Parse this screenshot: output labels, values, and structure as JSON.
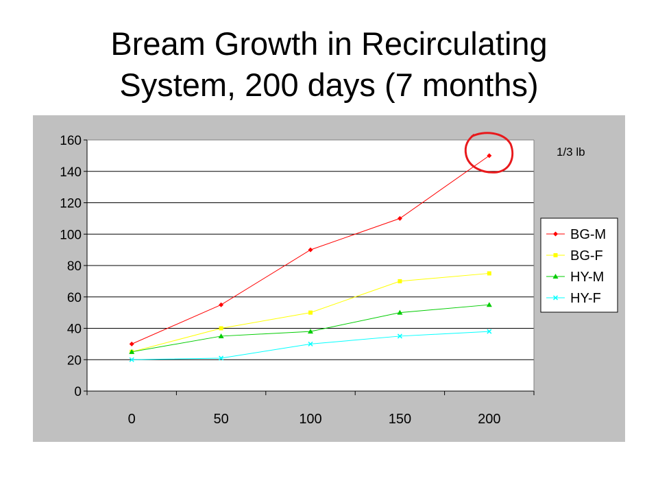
{
  "slide": {
    "title_line1": "Bream Growth in Recirculating",
    "title_line2": "System, 200 days (7 months)"
  },
  "annotation": {
    "text": "1/3 lb",
    "circle_color": "#e8191c"
  },
  "colors": {
    "chart_background": "#c0c0c0",
    "plot_background": "#ffffff",
    "gridline": "#000000"
  },
  "chart_data": {
    "type": "line",
    "categories": [
      "0",
      "50",
      "100",
      "150",
      "200"
    ],
    "x": [
      0,
      50,
      100,
      150,
      200
    ],
    "ylim": [
      0,
      160
    ],
    "yticks": [
      0,
      20,
      40,
      60,
      80,
      100,
      120,
      140,
      160
    ],
    "grid": true,
    "legend_position": "right",
    "series": [
      {
        "name": "BG-M",
        "color": "#ff0000",
        "marker": "diamond",
        "values": [
          30,
          55,
          90,
          110,
          150
        ]
      },
      {
        "name": "BG-F",
        "color": "#ffff00",
        "marker": "square",
        "values": [
          25,
          40,
          50,
          70,
          75
        ]
      },
      {
        "name": "HY-M",
        "color": "#00cc00",
        "marker": "triangle",
        "values": [
          25,
          35,
          38,
          50,
          55
        ]
      },
      {
        "name": "HY-F",
        "color": "#00ffff",
        "marker": "x",
        "values": [
          20,
          21,
          30,
          35,
          38
        ]
      }
    ]
  }
}
